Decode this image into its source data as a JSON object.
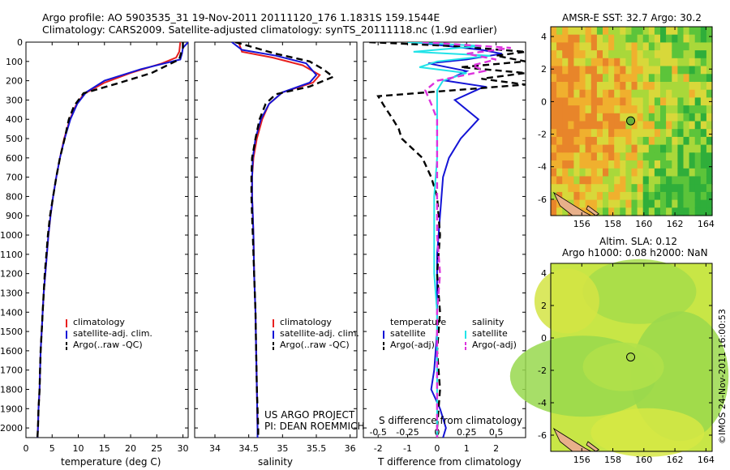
{
  "header": {
    "line1": "Argo profile: AO 5903535_31 19-Nov-2011 20111120_176 1.1831S 159.1544E",
    "line2": "Climatology: CARS2009. Satellite-adjusted climatology: synTS_20111118.nc (1.9d earlier)"
  },
  "colors": {
    "red": "#e8201f",
    "blue": "#1414d6",
    "black": "#000000",
    "cyan": "#22e3e8",
    "magenta": "#dd33dd",
    "sst_warm": "#e88a2a",
    "ssh_bg": "#c8e646"
  },
  "chart_data": [
    {
      "type": "line",
      "id": "temperature-profile",
      "xlabel": "temperature (deg C)",
      "ylabel": "",
      "xlim": [
        0,
        31
      ],
      "ylim": [
        2050,
        0
      ],
      "xticks": [
        "0",
        "5",
        "10",
        "15",
        "20",
        "25",
        "30"
      ],
      "yticks": [
        "0",
        "100",
        "200",
        "300",
        "400",
        "500",
        "600",
        "700",
        "800",
        "900",
        "1000",
        "1100",
        "1200",
        "1300",
        "1400",
        "1500",
        "1600",
        "1700",
        "1800",
        "1900",
        "2000"
      ],
      "legend": [
        "climatology",
        "satellite-adj. clim.",
        "Argo(..raw -QC)"
      ],
      "series": [
        {
          "name": "climatology",
          "color": "red",
          "dash": false,
          "points": [
            [
              29.5,
              0
            ],
            [
              29.3,
              50
            ],
            [
              28.7,
              80
            ],
            [
              26,
              110
            ],
            [
              20,
              160
            ],
            [
              15,
              210
            ],
            [
              11,
              270
            ],
            [
              9.5,
              330
            ],
            [
              8.4,
              400
            ],
            [
              7.3,
              500
            ],
            [
              6.5,
              600
            ],
            [
              5.8,
              700
            ],
            [
              5.2,
              800
            ],
            [
              4.7,
              900
            ],
            [
              4.3,
              1000
            ],
            [
              4.0,
              1100
            ],
            [
              3.7,
              1200
            ],
            [
              3.4,
              1300
            ],
            [
              3.2,
              1400
            ],
            [
              3.0,
              1500
            ],
            [
              2.8,
              1600
            ],
            [
              2.7,
              1700
            ],
            [
              2.6,
              1800
            ],
            [
              2.4,
              1900
            ],
            [
              2.3,
              2000
            ],
            [
              2.2,
              2050
            ]
          ]
        },
        {
          "name": "satellite-adj. clim.",
          "color": "blue",
          "dash": false,
          "points": [
            [
              31,
              0
            ],
            [
              30,
              30
            ],
            [
              29.8,
              60
            ],
            [
              29.5,
              90
            ],
            [
              22,
              140
            ],
            [
              15,
              200
            ],
            [
              11.5,
              260
            ],
            [
              9.8,
              320
            ],
            [
              8.5,
              400
            ],
            [
              7.4,
              500
            ],
            [
              6.5,
              600
            ],
            [
              5.8,
              700
            ],
            [
              5.2,
              800
            ],
            [
              4.7,
              900
            ],
            [
              4.3,
              1000
            ],
            [
              4.0,
              1100
            ],
            [
              3.7,
              1200
            ],
            [
              3.4,
              1300
            ],
            [
              3.2,
              1400
            ],
            [
              3.0,
              1500
            ],
            [
              2.8,
              1600
            ],
            [
              2.7,
              1700
            ],
            [
              2.6,
              1800
            ],
            [
              2.4,
              1900
            ],
            [
              2.3,
              2000
            ],
            [
              2.2,
              2050
            ]
          ]
        },
        {
          "name": "Argo(..raw -QC)",
          "color": "black",
          "dash": true,
          "points": [
            [
              30,
              0
            ],
            [
              30,
              30
            ],
            [
              29.6,
              60
            ],
            [
              29.3,
              90
            ],
            [
              27,
              120
            ],
            [
              24,
              160
            ],
            [
              18,
              210
            ],
            [
              11,
              265
            ],
            [
              9.2,
              330
            ],
            [
              8.2,
              400
            ],
            [
              7.4,
              500
            ],
            [
              6.5,
              600
            ],
            [
              5.8,
              700
            ],
            [
              5.2,
              800
            ],
            [
              4.6,
              900
            ],
            [
              4.2,
              1000
            ],
            [
              3.9,
              1100
            ],
            [
              3.6,
              1200
            ],
            [
              3.4,
              1300
            ],
            [
              3.2,
              1400
            ],
            [
              3.0,
              1500
            ],
            [
              2.8,
              1600
            ],
            [
              2.7,
              1700
            ],
            [
              2.6,
              1800
            ],
            [
              2.4,
              1900
            ],
            [
              2.3,
              2000
            ],
            [
              2.2,
              2050
            ]
          ]
        }
      ]
    },
    {
      "type": "line",
      "id": "salinity-profile",
      "xlabel": "salinity",
      "xlim": [
        33.7,
        36.1
      ],
      "ylim": [
        2050,
        0
      ],
      "xticks": [
        "34",
        "34.5",
        "35",
        "35.5",
        "36"
      ],
      "legend": [
        "climatology",
        "satellite-adj. clim.",
        "Argo(..raw -QC)"
      ],
      "series": [
        {
          "name": "climatology",
          "color": "red",
          "dash": false,
          "points": [
            [
              34.35,
              0
            ],
            [
              34.4,
              50
            ],
            [
              34.85,
              80
            ],
            [
              35.3,
              120
            ],
            [
              35.55,
              170
            ],
            [
              35.45,
              210
            ],
            [
              35.0,
              260
            ],
            [
              34.8,
              320
            ],
            [
              34.7,
              400
            ],
            [
              34.62,
              500
            ],
            [
              34.57,
              600
            ],
            [
              34.55,
              700
            ],
            [
              34.55,
              800
            ],
            [
              34.56,
              900
            ],
            [
              34.57,
              1000
            ],
            [
              34.58,
              1200
            ],
            [
              34.6,
              1400
            ],
            [
              34.61,
              1600
            ],
            [
              34.62,
              1800
            ],
            [
              34.63,
              2000
            ],
            [
              34.63,
              2050
            ]
          ]
        },
        {
          "name": "satellite-adj. clim.",
          "color": "blue",
          "dash": false,
          "points": [
            [
              34.25,
              0
            ],
            [
              34.4,
              40
            ],
            [
              34.9,
              70
            ],
            [
              35.35,
              110
            ],
            [
              35.5,
              170
            ],
            [
              35.4,
              210
            ],
            [
              35.0,
              260
            ],
            [
              34.8,
              320
            ],
            [
              34.68,
              400
            ],
            [
              34.6,
              500
            ],
            [
              34.56,
              600
            ],
            [
              34.55,
              700
            ],
            [
              34.55,
              800
            ],
            [
              34.56,
              900
            ],
            [
              34.57,
              1000
            ],
            [
              34.58,
              1200
            ],
            [
              34.6,
              1400
            ],
            [
              34.61,
              1600
            ],
            [
              34.62,
              1800
            ],
            [
              34.63,
              2000
            ],
            [
              34.63,
              2050
            ]
          ]
        },
        {
          "name": "Argo(..raw -QC)",
          "color": "black",
          "dash": true,
          "points": [
            [
              34.3,
              0
            ],
            [
              34.9,
              60
            ],
            [
              35.4,
              100
            ],
            [
              35.6,
              140
            ],
            [
              35.75,
              180
            ],
            [
              35.4,
              230
            ],
            [
              34.9,
              270
            ],
            [
              34.75,
              320
            ],
            [
              34.66,
              400
            ],
            [
              34.6,
              500
            ],
            [
              34.55,
              600
            ],
            [
              34.54,
              700
            ],
            [
              34.54,
              800
            ],
            [
              34.55,
              900
            ],
            [
              34.56,
              1000
            ],
            [
              34.58,
              1200
            ],
            [
              34.6,
              1400
            ],
            [
              34.61,
              1600
            ],
            [
              34.62,
              1800
            ],
            [
              34.64,
              2000
            ],
            [
              34.64,
              2050
            ]
          ]
        }
      ]
    },
    {
      "type": "line",
      "id": "difference-profile",
      "xlabel": "T difference from climatology",
      "xlabel_top": "S difference from climatology",
      "xlim": [
        -2.5,
        3
      ],
      "ylim": [
        2050,
        0
      ],
      "xticks": [
        "-2",
        "-1",
        "0",
        "1",
        "2"
      ],
      "xticks_top": [
        "-0.5",
        "-0.25",
        "0",
        "0.25",
        "0.5"
      ],
      "legend_titles": [
        "temperature",
        "salinity"
      ],
      "legend": [
        "satellite",
        "Argo(-adj)",
        "satellite",
        "Argo(-adj)"
      ],
      "series": [
        {
          "name": "temperature satellite",
          "color": "blue",
          "dash": false,
          "points": [
            [
              -0.8,
              0
            ],
            [
              1.5,
              40
            ],
            [
              2.2,
              60
            ],
            [
              1.0,
              90
            ],
            [
              -0.3,
              110
            ],
            [
              1.0,
              150
            ],
            [
              0.3,
              200
            ],
            [
              1.6,
              230
            ],
            [
              0.6,
              300
            ],
            [
              1.4,
              400
            ],
            [
              0.8,
              500
            ],
            [
              0.4,
              600
            ],
            [
              0.2,
              700
            ],
            [
              0.1,
              900
            ],
            [
              0,
              1100
            ],
            [
              0,
              1300
            ],
            [
              0,
              1500
            ],
            [
              -0.1,
              1700
            ],
            [
              -0.2,
              1800
            ],
            [
              0.1,
              1900
            ],
            [
              0.3,
              2000
            ],
            [
              0.2,
              2050
            ]
          ]
        },
        {
          "name": "temperature Argo(-adj)",
          "color": "black",
          "dash": true,
          "points": [
            [
              -2.3,
              0
            ],
            [
              0.5,
              20
            ],
            [
              3.0,
              50
            ],
            [
              2.0,
              70
            ],
            [
              3.0,
              100
            ],
            [
              0.8,
              130
            ],
            [
              3.0,
              160
            ],
            [
              1.5,
              190
            ],
            [
              3.0,
              220
            ],
            [
              -2.0,
              280
            ],
            [
              -1.8,
              330
            ],
            [
              -1.5,
              400
            ],
            [
              -1.3,
              450
            ],
            [
              -1.2,
              500
            ],
            [
              -0.5,
              600
            ],
            [
              -0.2,
              700
            ],
            [
              0.0,
              800
            ],
            [
              0.1,
              1000
            ],
            [
              0.0,
              1200
            ],
            [
              0.1,
              1400
            ],
            [
              0.0,
              1600
            ],
            [
              0.1,
              1800
            ],
            [
              0.0,
              2000
            ],
            [
              0.0,
              2050
            ]
          ]
        },
        {
          "name": "salinity satellite",
          "color": "cyan",
          "dash": false,
          "points": [
            [
              -1.0,
              0
            ],
            [
              1.5,
              20
            ],
            [
              -0.8,
              50
            ],
            [
              1.8,
              70
            ],
            [
              0.0,
              100
            ],
            [
              -0.6,
              130
            ],
            [
              1.0,
              160
            ],
            [
              0.2,
              200
            ],
            [
              0.0,
              250
            ],
            [
              0.0,
              400
            ],
            [
              0.0,
              600
            ],
            [
              -0.1,
              800
            ],
            [
              -0.1,
              1000
            ],
            [
              -0.1,
              1200
            ],
            [
              0,
              1400
            ],
            [
              0,
              1600
            ],
            [
              0,
              1800
            ],
            [
              0,
              2000
            ],
            [
              0,
              2050
            ]
          ]
        },
        {
          "name": "salinity Argo(-adj)",
          "color": "magenta",
          "dash": true,
          "points": [
            [
              -0.5,
              0
            ],
            [
              2.5,
              30
            ],
            [
              1.0,
              60
            ],
            [
              2.0,
              90
            ],
            [
              1.2,
              120
            ],
            [
              1.6,
              150
            ],
            [
              0.0,
              200
            ],
            [
              -0.4,
              250
            ],
            [
              -0.2,
              320
            ],
            [
              0.0,
              400
            ],
            [
              0.0,
              600
            ],
            [
              0.0,
              800
            ],
            [
              0.0,
              1000
            ],
            [
              0.1,
              1200
            ],
            [
              0,
              1400
            ],
            [
              0,
              1600
            ],
            [
              0,
              1800
            ],
            [
              0,
              2000
            ],
            [
              0,
              2050
            ]
          ]
        }
      ]
    },
    {
      "type": "heatmap",
      "id": "sst-map",
      "title": "AMSR-E SST: 32.7 Argo: 30.2",
      "xlim": [
        154,
        164.4
      ],
      "ylim": [
        -7,
        4.6
      ],
      "xticks": [
        "156",
        "158",
        "160",
        "162",
        "164"
      ],
      "yticks": [
        "4",
        "2",
        "0",
        "-2",
        "-4",
        "-6"
      ],
      "marker": [
        159.15,
        -1.18
      ]
    },
    {
      "type": "heatmap",
      "id": "sla-map",
      "title1": "Altim. SLA: 0.12",
      "title2": "Argo h1000: 0.08 h2000: NaN",
      "xlim": [
        154,
        164.4
      ],
      "ylim": [
        -7,
        4.6
      ],
      "xticks": [
        "156",
        "158",
        "160",
        "162",
        "164"
      ],
      "yticks": [
        "4",
        "2",
        "0",
        "-2",
        "-4",
        "-6"
      ],
      "marker": [
        159.15,
        -1.18
      ]
    }
  ],
  "credits": {
    "line1": "US ARGO PROJECT",
    "line2": "PI: DEAN ROEMMICH"
  },
  "stamp": "©IMOS 24-Nov-2011 16:00:53"
}
